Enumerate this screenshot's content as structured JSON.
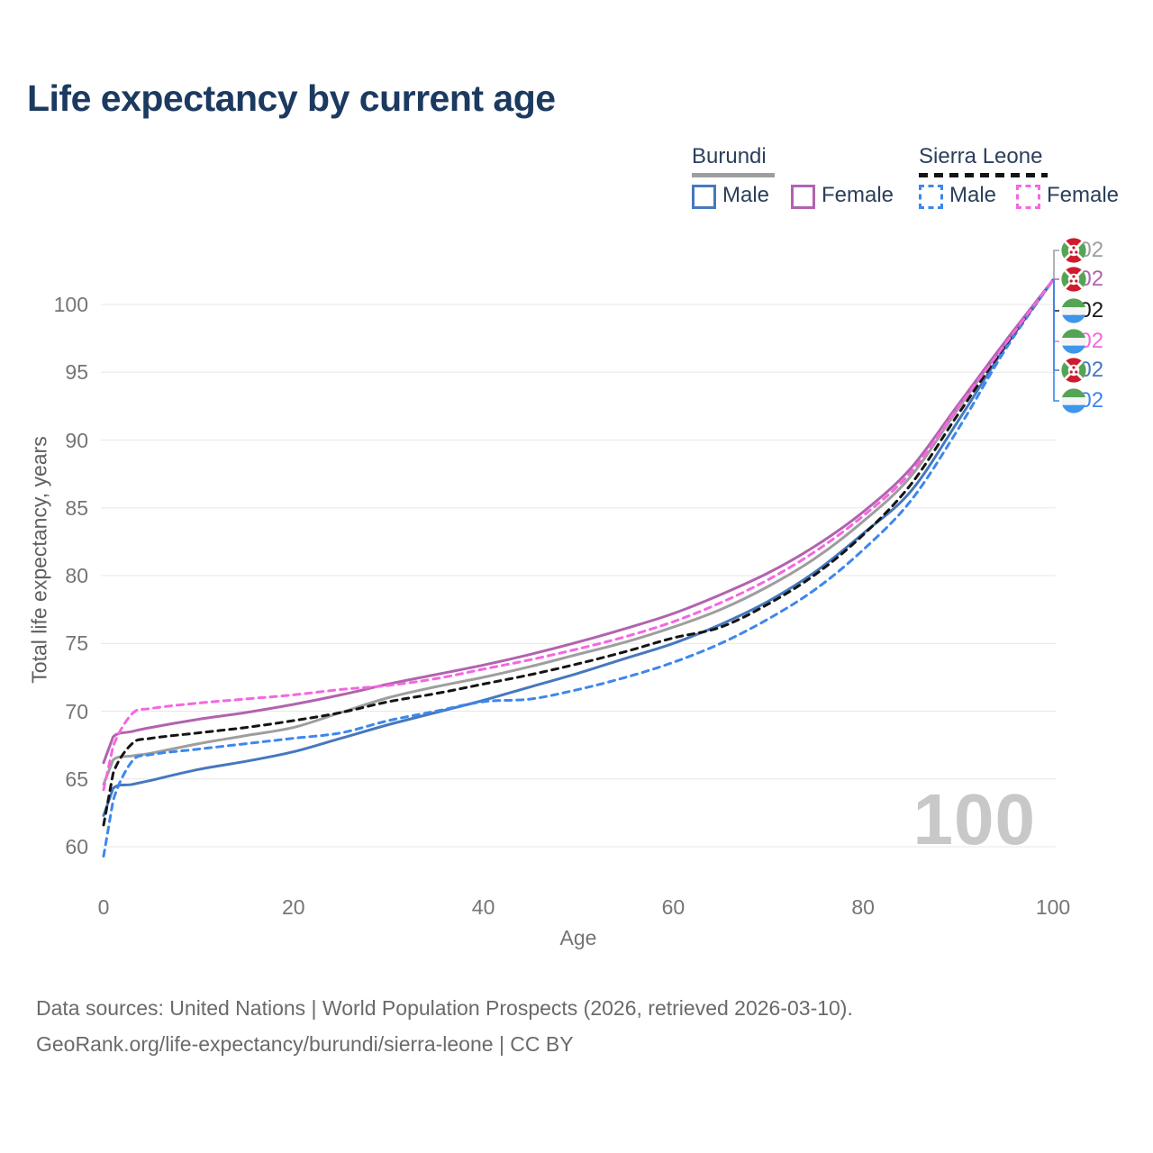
{
  "title": "Life expectancy by current age",
  "legend": {
    "groups": [
      {
        "country": "Burundi",
        "line_style": "solid",
        "underline_color": "#9e9e9e",
        "items": [
          {
            "label": "Male",
            "color": "#4678bd"
          },
          {
            "label": "Female",
            "color": "#b163ae"
          }
        ]
      },
      {
        "country": "Sierra Leone",
        "line_style": "dashed",
        "underline_color": "#141414",
        "items": [
          {
            "label": "Male",
            "color": "#3d87ee"
          },
          {
            "label": "Female",
            "color": "#f666e0"
          }
        ]
      }
    ]
  },
  "chart_data": {
    "type": "line",
    "title": "Life expectancy by current age",
    "xlabel": "Age",
    "ylabel": "Total life expectancy, years",
    "xlim": [
      0,
      100
    ],
    "ylim": [
      59,
      103
    ],
    "x_ticks": [
      0,
      20,
      40,
      60,
      80,
      100
    ],
    "y_ticks": [
      60,
      65,
      70,
      75,
      80,
      85,
      90,
      95,
      100
    ],
    "grid": "horizontal",
    "gridline_color": "#e7e7e7",
    "ages": [
      0,
      1,
      3,
      5,
      10,
      15,
      20,
      25,
      30,
      35,
      40,
      45,
      50,
      55,
      60,
      65,
      70,
      75,
      80,
      85,
      90,
      95,
      100
    ],
    "series": [
      {
        "id": "burundi_male",
        "name": "Burundi Male",
        "country": "Burundi",
        "sex": "Male",
        "color": "#4678bd",
        "dashed": false,
        "flag": "burundi",
        "values": [
          62.3,
          64.3,
          64.6,
          64.9,
          65.7,
          66.3,
          67.0,
          68.0,
          69.0,
          69.9,
          70.8,
          71.8,
          72.8,
          73.9,
          75.0,
          76.4,
          78.1,
          80.3,
          83.1,
          86.2,
          91.4,
          96.9,
          101.8
        ]
      },
      {
        "id": "burundi_both",
        "name": "Burundi (both sexes)",
        "country": "Burundi",
        "sex": "Both sexes",
        "color": "#9e9e9e",
        "dashed": false,
        "flag": "burundi",
        "values": [
          64.6,
          66.4,
          66.7,
          66.9,
          67.6,
          68.2,
          68.8,
          69.9,
          71.0,
          71.8,
          72.5,
          73.3,
          74.2,
          75.1,
          76.2,
          77.5,
          79.2,
          81.3,
          84.0,
          87.3,
          92.3,
          97.2,
          101.8
        ]
      },
      {
        "id": "burundi_female",
        "name": "Burundi Female",
        "country": "Burundi",
        "sex": "Female",
        "color": "#b163ae",
        "dashed": false,
        "flag": "burundi",
        "values": [
          66.2,
          68.1,
          68.5,
          68.8,
          69.4,
          69.9,
          70.5,
          71.2,
          72.0,
          72.7,
          73.4,
          74.2,
          75.1,
          76.1,
          77.2,
          78.6,
          80.2,
          82.2,
          84.7,
          87.9,
          92.6,
          97.3,
          101.8
        ]
      },
      {
        "id": "sierra_leone_male",
        "name": "Sierra Leone Male",
        "country": "Sierra Leone",
        "sex": "Male",
        "color": "#3d87ee",
        "dashed": true,
        "flag": "sierra_leone",
        "values": [
          59.3,
          63.4,
          66.3,
          66.8,
          67.2,
          67.6,
          68.0,
          68.4,
          69.3,
          70.0,
          70.7,
          70.9,
          71.6,
          72.5,
          73.6,
          75.0,
          76.8,
          79.0,
          81.9,
          85.5,
          90.8,
          96.7,
          101.8
        ]
      },
      {
        "id": "sierra_leone_both",
        "name": "Sierra Leone (both sexes)",
        "country": "Sierra Leone",
        "sex": "Both sexes",
        "color": "#141414",
        "dashed": true,
        "flag": "sierra_leone",
        "values": [
          61.6,
          65.4,
          67.6,
          68.0,
          68.4,
          68.8,
          69.3,
          69.9,
          70.7,
          71.3,
          72.0,
          72.7,
          73.5,
          74.4,
          75.4,
          76.2,
          77.9,
          80.1,
          83.0,
          86.7,
          91.9,
          97.0,
          101.8
        ]
      },
      {
        "id": "sierra_leone_female",
        "name": "Sierra Leone Female",
        "country": "Sierra Leone",
        "sex": "Female",
        "color": "#f666e0",
        "dashed": true,
        "flag": "sierra_leone",
        "values": [
          64.2,
          67.4,
          69.8,
          70.2,
          70.6,
          70.9,
          71.2,
          71.6,
          71.9,
          72.4,
          73.1,
          73.8,
          74.6,
          75.5,
          76.6,
          78.0,
          79.7,
          81.8,
          84.4,
          87.6,
          92.4,
          97.1,
          101.8
        ]
      }
    ],
    "end_labels": [
      {
        "series_id": "burundi_both",
        "flag": "burundi",
        "value": "102",
        "color": "#9e9e9e"
      },
      {
        "series_id": "burundi_female",
        "flag": "burundi",
        "value": "102",
        "color": "#b163ae"
      },
      {
        "series_id": "sierra_leone_both",
        "flag": "sierra_leone",
        "value": "102",
        "color": "#1a1a1a"
      },
      {
        "series_id": "sierra_leone_female",
        "flag": "sierra_leone",
        "value": "102",
        "color": "#f666e0"
      },
      {
        "series_id": "burundi_male",
        "flag": "burundi",
        "value": "102",
        "color": "#4678bd"
      },
      {
        "series_id": "sierra_leone_male",
        "flag": "sierra_leone",
        "value": "102",
        "color": "#3d87ee"
      }
    ],
    "flag_colors": {
      "burundi": {
        "red": "#ce1b2e",
        "green": "#55a455",
        "white": "#ffffff"
      },
      "sierra_leone": {
        "green": "#55a455",
        "white": "#f4f4f4",
        "blue": "#3c96ea"
      }
    }
  },
  "annotations": {
    "age_watermark": "100"
  },
  "footer": {
    "line1": "Data sources: United Nations | World Population Prospects (2026, retrieved 2026-03-10).",
    "line2": "GeoRank.org/life-expectancy/burundi/sierra-leone | CC BY"
  }
}
